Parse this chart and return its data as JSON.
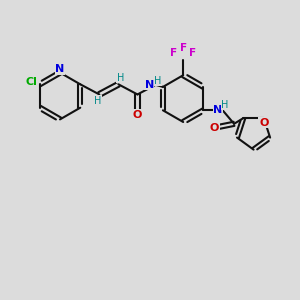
{
  "background_color": "#dcdcdc",
  "bond_color": "#111111",
  "N_color": "#0000dd",
  "O_color": "#cc0000",
  "Cl_color": "#00aa00",
  "F_color": "#cc00cc",
  "H_color": "#008888",
  "figsize": [
    3.0,
    3.0
  ],
  "dpi": 100,
  "xlim": [
    0,
    10
  ],
  "ylim": [
    0,
    10
  ]
}
